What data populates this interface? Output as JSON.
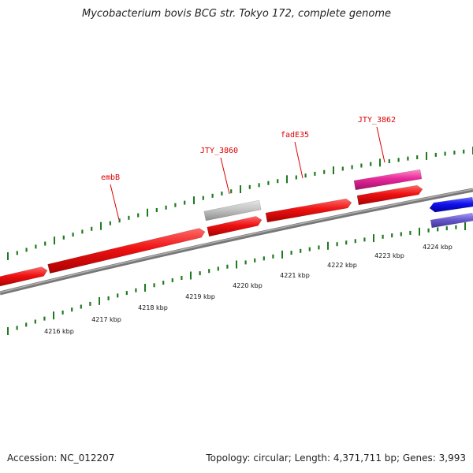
{
  "title": "Mycobacterium bovis BCG str. Tokyo 172, complete genome",
  "footer": {
    "accession": "Accession: NC_012207",
    "summary": "Topology: circular; Length: 4,371,711 bp; Genes: 3,993"
  },
  "colors": {
    "label": "#dd0000",
    "tick": "#1f7a1f",
    "backbone": "#888888",
    "gene_red": "#ee1111",
    "gene_pink": "#e8289a",
    "gene_gray": "#c4c4c4",
    "gene_blue": "#1111ee",
    "gene_purple": "#6a5acd"
  },
  "gene_labels": [
    {
      "name": "embB"
    },
    {
      "name": "JTY_3860"
    },
    {
      "name": "fadE35"
    },
    {
      "name": "JTY_3862"
    }
  ],
  "scale_labels": [
    "4216 kbp",
    "4217 kbp",
    "4218 kbp",
    "4219 kbp",
    "4220 kbp",
    "4221 kbp",
    "4222 kbp",
    "4223 kbp",
    "4224 kbp"
  ]
}
